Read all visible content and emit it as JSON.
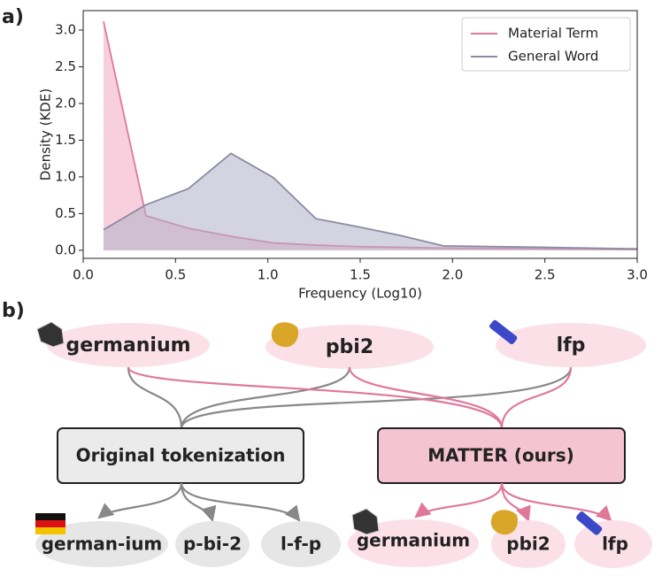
{
  "chart_data": {
    "type": "area",
    "panel_label": "a)",
    "x": [
      0.11,
      0.34,
      0.57,
      0.8,
      1.03,
      1.26,
      1.49,
      1.72,
      1.95,
      2.5,
      3.0
    ],
    "series": [
      {
        "name": "Material Term",
        "color": "#e0789a",
        "fill": "#f2a9c1",
        "values": [
          3.12,
          0.47,
          0.3,
          0.19,
          0.1,
          0.07,
          0.05,
          0.04,
          0.03,
          0.02,
          0.01
        ]
      },
      {
        "name": "General Word",
        "color": "#8a8ca2",
        "fill": "#aeb1c6",
        "values": [
          0.28,
          0.62,
          0.84,
          1.32,
          0.99,
          0.43,
          0.32,
          0.2,
          0.06,
          0.04,
          0.02
        ]
      }
    ],
    "x_label": "Frequency (Log10)",
    "y_label": "Density (KDE)",
    "xlim": [
      0,
      3
    ],
    "ylim": [
      -0.11,
      3.265
    ],
    "xticks": [
      {
        "value": 0,
        "label": "0.0"
      },
      {
        "value": 0.5,
        "label": "0.5"
      },
      {
        "value": 1,
        "label": "1.0"
      },
      {
        "value": 1.5,
        "label": "1.5"
      },
      {
        "value": 2,
        "label": "2.0"
      },
      {
        "value": 2.5,
        "label": "2.5"
      },
      {
        "value": 3,
        "label": "3.0"
      }
    ],
    "yticks": [
      {
        "value": 0,
        "label": "0.0"
      },
      {
        "value": 0.5,
        "label": "0.5"
      },
      {
        "value": 1,
        "label": "1.0"
      },
      {
        "value": 1.5,
        "label": "1.5"
      },
      {
        "value": 2,
        "label": "2.0"
      },
      {
        "value": 2.5,
        "label": "2.5"
      },
      {
        "value": 3,
        "label": "3.0"
      }
    ],
    "legend": "upper right"
  },
  "diagram": {
    "panel_label": "b)",
    "inputs": [
      "germanium",
      "pbi2",
      "lfp"
    ],
    "methods": [
      "Original tokenization",
      "MATTER (ours)"
    ],
    "original_outputs": [
      "german-ium",
      "p-bi-2",
      "l-f-p"
    ],
    "matter_outputs": [
      "germanium",
      "pbi2",
      "lfp"
    ]
  }
}
